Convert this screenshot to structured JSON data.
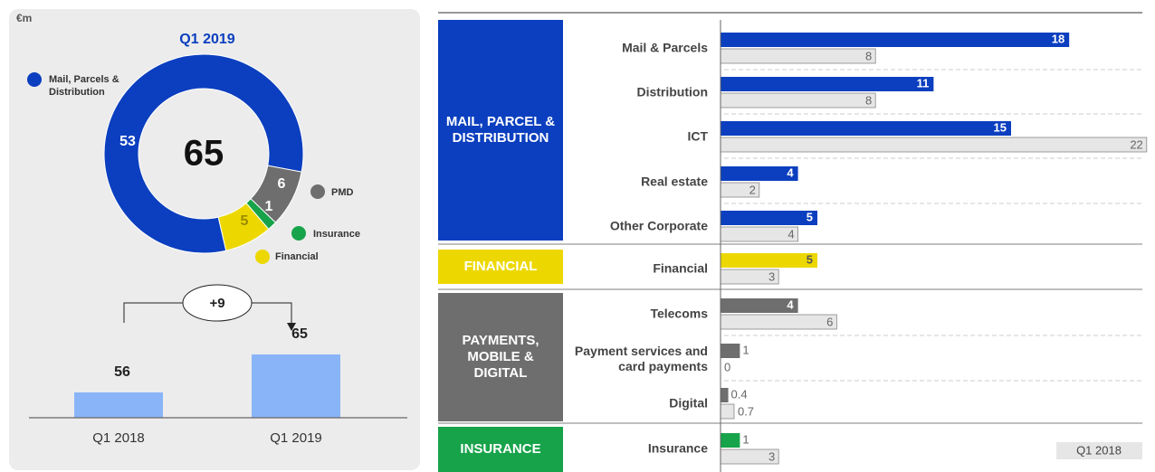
{
  "chart_data": [
    {
      "type": "pie",
      "unit": "€m",
      "title": "Q1 2019",
      "total": 65,
      "categories": [
        "Mail, Parcels & Distribution",
        "PMD",
        "Insurance",
        "Financial"
      ],
      "values": [
        53,
        6,
        1,
        5
      ],
      "colors": [
        "#0b3fbf",
        "#6e6e6e",
        "#17a34a",
        "#ecd800"
      ]
    },
    {
      "type": "bar",
      "categories": [
        "Q1 2018",
        "Q1 2019"
      ],
      "values": [
        56,
        65
      ],
      "color": "#8ab4f8",
      "ylim": [
        50,
        66
      ],
      "annotation": "+9"
    },
    {
      "type": "hbar",
      "groups": [
        {
          "label": "MAIL, PARCEL & DISTRIBUTION",
          "color": "#0b3fbf",
          "categories": [
            "Mail & Parcels",
            "Distribution",
            "ICT",
            "Real estate",
            "Other Corporate"
          ],
          "values": [
            18,
            11,
            15,
            4,
            5
          ],
          "previous": [
            8,
            8,
            22,
            2,
            4
          ]
        },
        {
          "label": "FINANCIAL",
          "color": "#ecd800",
          "categories": [
            "Financial"
          ],
          "values": [
            5
          ],
          "previous": [
            3
          ]
        },
        {
          "label": "PAYMENTS, MOBILE & DIGITAL",
          "color": "#6e6e6e",
          "categories": [
            "Telecoms",
            "Payment services and card payments",
            "Digital"
          ],
          "values": [
            4,
            1,
            0.4
          ],
          "previous": [
            6,
            0,
            0.7
          ]
        },
        {
          "label": "INSURANCE",
          "color": "#17a34a",
          "categories": [
            "Insurance"
          ],
          "values": [
            1
          ],
          "previous": [
            3
          ]
        }
      ],
      "legend": {
        "name": "Q1 2018",
        "color": "#e6e6e6"
      }
    }
  ]
}
